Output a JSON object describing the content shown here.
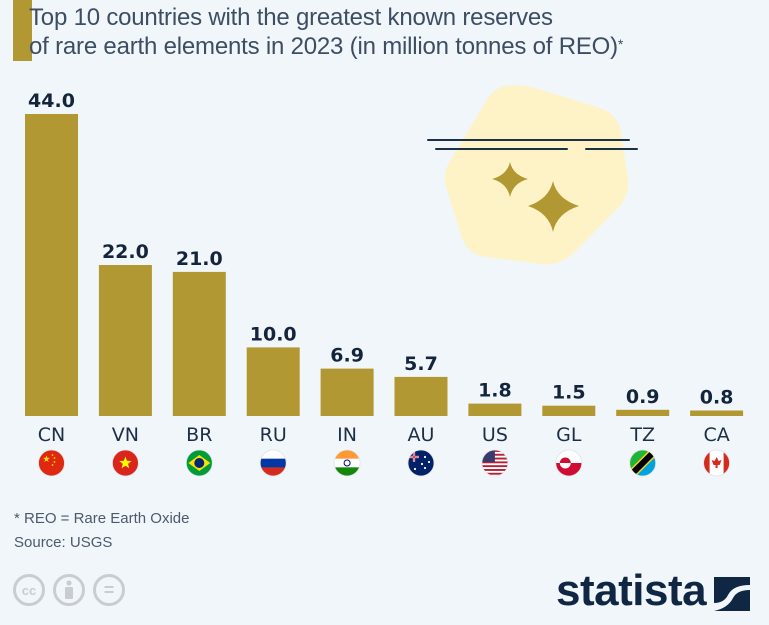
{
  "chart_data": {
    "type": "bar",
    "title": "Top 10 countries with the greatest known reserves of rare earth elements in 2023 (in million tonnes of REO)",
    "title_lines": [
      "Top 10 countries with the greatest known reserves",
      "of rare earth elements in 2023 (in million tonnes of REO)"
    ],
    "title_asterisk": "*",
    "xlabel": "",
    "ylabel": "",
    "ylim": [
      0,
      44
    ],
    "grid": false,
    "categories": [
      "CN",
      "VN",
      "BR",
      "RU",
      "IN",
      "AU",
      "US",
      "GL",
      "TZ",
      "CA"
    ],
    "values": [
      44.0,
      22.0,
      21.0,
      10.0,
      6.9,
      5.7,
      1.8,
      1.5,
      0.9,
      0.8
    ],
    "value_labels": [
      "44.0",
      "22.0",
      "21.0",
      "10.0",
      "6.9",
      "5.7",
      "1.8",
      "1.5",
      "0.9",
      "0.8"
    ],
    "flags": [
      "china-flag-icon",
      "vietnam-flag-icon",
      "brazil-flag-icon",
      "russia-flag-icon",
      "india-flag-icon",
      "australia-flag-icon",
      "usa-flag-icon",
      "greenland-flag-icon",
      "tanzania-flag-icon",
      "canada-flag-icon"
    ],
    "bar_color": "#b29832"
  },
  "footnote": {
    "note": "* REO = Rare Earth Oxide",
    "source": "Source: USGS"
  },
  "license_icons": [
    "cc-icon",
    "attribution-icon",
    "no-derivatives-icon"
  ],
  "license_glyphs": [
    "cc",
    "",
    "="
  ],
  "brand": {
    "name": "statista"
  },
  "colors": {
    "background": "#f1f6fb",
    "accent": "#b29832",
    "text_dark": "#14253b",
    "title": "#3d4e63",
    "decor": "#fdf3c6"
  }
}
